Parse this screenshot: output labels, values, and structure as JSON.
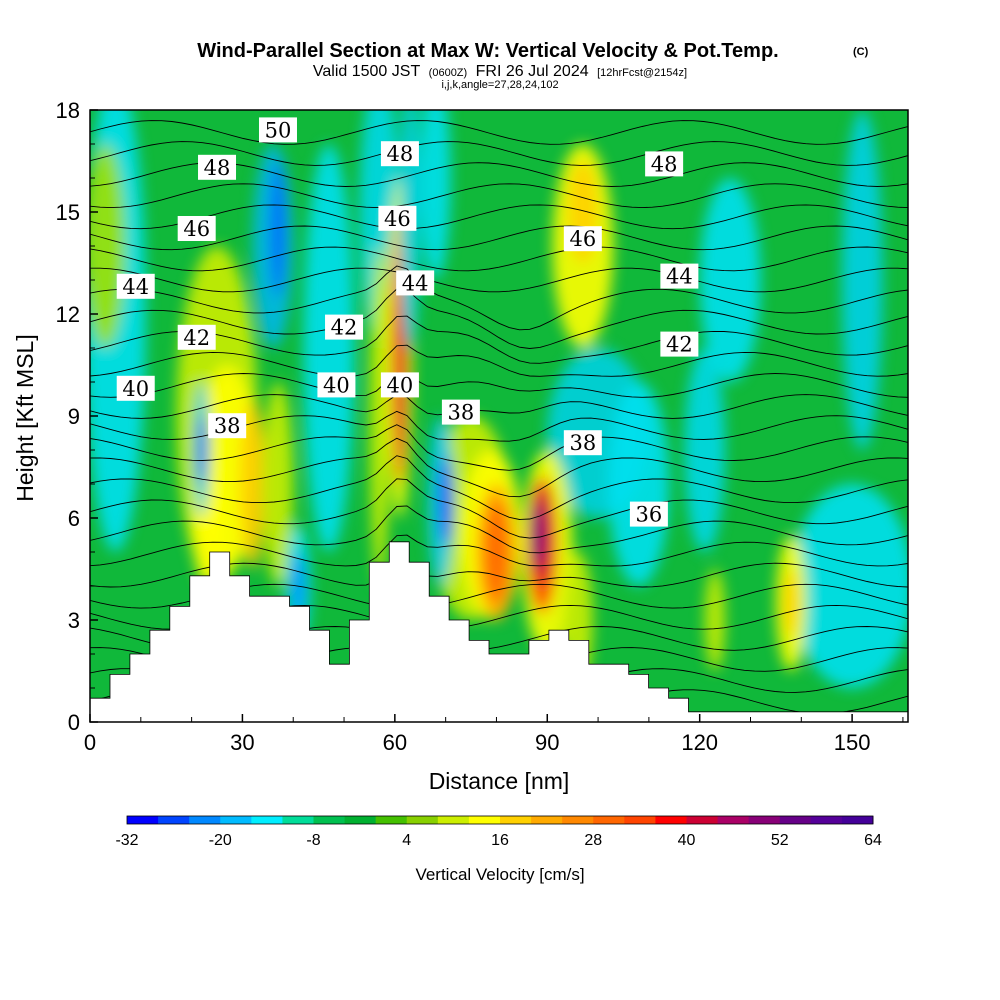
{
  "title": {
    "main": "Wind-Parallel Section at Max W: Vertical Velocity & Pot.Temp.",
    "copyright": "(C)",
    "valid_a": "Valid 1500 JST",
    "valid_b": "(0600Z)",
    "valid_c": "FRI 26 Jul 2024",
    "valid_d": "[12hrFcst@2154z]",
    "line3": "i,j,k,angle=27,28,24,102"
  },
  "chart_data": {
    "type": "heatmap",
    "xlabel": "Distance [nm]",
    "ylabel": "Height [Kft MSL]",
    "xlim": [
      0,
      161
    ],
    "ylim": [
      0,
      18
    ],
    "xticks": [
      0,
      30,
      60,
      90,
      120,
      150
    ],
    "yticks": [
      0,
      3,
      6,
      9,
      12,
      15,
      18
    ],
    "colorbar": {
      "title": "Vertical Velocity [cm/s]",
      "min": -32,
      "max": 64,
      "step": 4,
      "tick_values": [
        -32,
        -20,
        -8,
        4,
        16,
        28,
        40,
        52,
        64
      ],
      "colors": [
        "#0000ff",
        "#0044ff",
        "#0088ff",
        "#00bbff",
        "#00eeff",
        "#00dd99",
        "#00c050",
        "#00b030",
        "#44c000",
        "#88d000",
        "#ccee00",
        "#ffff00",
        "#ffd000",
        "#ffaa00",
        "#ff8800",
        "#ff6600",
        "#ff4400",
        "#ff0000",
        "#cc0033",
        "#aa0066",
        "#880077",
        "#660088",
        "#550099",
        "#440099"
      ]
    },
    "contour_field": "Potential Temperature",
    "contour_labels": [
      {
        "text": "50",
        "x": 37,
        "y": 17.4
      },
      {
        "text": "48",
        "x": 25,
        "y": 16.3
      },
      {
        "text": "48",
        "x": 61,
        "y": 16.7
      },
      {
        "text": "48",
        "x": 113,
        "y": 16.4
      },
      {
        "text": "46",
        "x": 21,
        "y": 14.5
      },
      {
        "text": "46",
        "x": 60.5,
        "y": 14.8
      },
      {
        "text": "46",
        "x": 97,
        "y": 14.2
      },
      {
        "text": "44",
        "x": 9,
        "y": 12.8
      },
      {
        "text": "44",
        "x": 64,
        "y": 12.9
      },
      {
        "text": "44",
        "x": 116,
        "y": 13.1
      },
      {
        "text": "42",
        "x": 21,
        "y": 11.3
      },
      {
        "text": "42",
        "x": 50,
        "y": 11.6
      },
      {
        "text": "42",
        "x": 116,
        "y": 11.1
      },
      {
        "text": "40",
        "x": 9,
        "y": 9.8
      },
      {
        "text": "40",
        "x": 48.5,
        "y": 9.9
      },
      {
        "text": "40",
        "x": 61,
        "y": 9.9
      },
      {
        "text": "38",
        "x": 27,
        "y": 8.7
      },
      {
        "text": "38",
        "x": 73,
        "y": 9.1
      },
      {
        "text": "38",
        "x": 97,
        "y": 8.2
      },
      {
        "text": "36",
        "x": 110,
        "y": 6.1
      }
    ],
    "terrain_heights": [
      0.7,
      1.4,
      2.0,
      2.7,
      3.4,
      4.3,
      5.0,
      4.3,
      3.7,
      3.7,
      3.4,
      2.7,
      1.7,
      3.0,
      4.7,
      5.3,
      4.7,
      3.7,
      3.0,
      2.4,
      2.0,
      2.0,
      2.4,
      2.7,
      2.4,
      1.7,
      1.7,
      1.4,
      1.0,
      0.7,
      0.3,
      0.3,
      0.3,
      0.3,
      0.3,
      0.3,
      0.3,
      0.3,
      0.3,
      0.3,
      0.3
    ]
  }
}
